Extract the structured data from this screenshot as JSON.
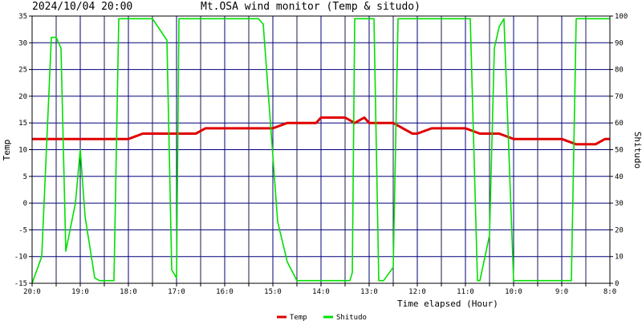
{
  "header": {
    "timestamp": "2024/10/04 20:00",
    "title": "Mt.OSA wind monitor (Temp & situdo)"
  },
  "chart_data": {
    "type": "line",
    "xlabel": "Time elapsed (Hour)",
    "ylabel_left": "Temp",
    "ylabel_right": "Shitudo",
    "ylim_left": [
      -15,
      35
    ],
    "ylim_right": [
      0,
      100
    ],
    "y_ticks_left": [
      35,
      30,
      25,
      20,
      15,
      10,
      5,
      0,
      -5,
      -10,
      -15
    ],
    "y_ticks_right": [
      100,
      90,
      80,
      70,
      60,
      50,
      40,
      30,
      20,
      10,
      0
    ],
    "x_tick_labels": [
      "20:0",
      "19:0",
      "18:0",
      "17:0",
      "16:0",
      "15:0",
      "14:0",
      "13:0",
      "12:0",
      "11:0",
      "10:0",
      "9:0",
      "8:0"
    ],
    "xlim": [
      0,
      12
    ],
    "grid": true,
    "legend_position": "bottom",
    "series": [
      {
        "name": "Temp",
        "color": "#e00000",
        "axis": "left",
        "x": [
          0,
          0.5,
          1.0,
          1.3,
          1.5,
          1.7,
          2.0,
          2.3,
          2.5,
          2.7,
          3.0,
          3.4,
          3.6,
          3.8,
          4.0,
          4.3,
          4.5,
          4.7,
          5.0,
          5.3,
          5.5,
          5.7,
          5.9,
          6.0,
          6.3,
          6.5,
          6.7,
          6.9,
          7.0,
          7.3,
          7.5,
          7.7,
          7.9,
          8.0,
          8.3,
          8.5,
          8.7,
          9.0,
          9.3,
          9.5,
          9.7,
          10.0,
          10.3,
          10.5,
          10.7,
          10.9,
          11.0,
          11.3,
          11.5,
          11.7,
          11.9,
          12.0
        ],
        "values": [
          12,
          12,
          12,
          12,
          12,
          12,
          12,
          13,
          13,
          13,
          13,
          13,
          14,
          14,
          14,
          14,
          14,
          14,
          14,
          15,
          15,
          15,
          15,
          16,
          16,
          16,
          15,
          16,
          15,
          15,
          15,
          14,
          13,
          13,
          14,
          14,
          14,
          14,
          13,
          13,
          13,
          12,
          12,
          12,
          12,
          12,
          12,
          11,
          11,
          11,
          12,
          12
        ]
      },
      {
        "name": "Shitudo",
        "color": "#00e000",
        "axis": "right",
        "x": [
          0,
          0.2,
          0.4,
          0.5,
          0.6,
          0.7,
          0.9,
          1.0,
          1.1,
          1.3,
          1.4,
          1.6,
          1.7,
          1.8,
          2.0,
          2.1,
          2.25,
          2.3,
          2.5,
          2.8,
          2.9,
          3.0,
          3.05,
          3.1,
          3.25,
          3.3,
          3.4,
          3.5,
          4.0,
          4.5,
          4.6,
          4.7,
          4.8,
          5.1,
          5.3,
          5.5,
          6.0,
          6.5,
          6.6,
          6.65,
          6.7,
          7.0,
          7.1,
          7.2,
          7.3,
          7.5,
          7.6,
          8.0,
          8.5,
          8.6,
          8.7,
          9.0,
          9.1,
          9.25,
          9.3,
          9.5,
          9.6,
          9.7,
          9.8,
          10.0,
          10.5,
          11.0,
          11.15,
          11.2,
          11.3,
          11.5,
          11.7,
          12.0
        ],
        "values": [
          0,
          10,
          92,
          92,
          88,
          12,
          30,
          50,
          25,
          2,
          1,
          1,
          1,
          99,
          99,
          99,
          99,
          99,
          99,
          91,
          5,
          2,
          99,
          99,
          99,
          99,
          99,
          99,
          99,
          99,
          99,
          99,
          97,
          23,
          8,
          1,
          1,
          1,
          1,
          4,
          99,
          99,
          99,
          1,
          1,
          6,
          99,
          99,
          99,
          99,
          99,
          99,
          99,
          1,
          1,
          18,
          88,
          96,
          99,
          1,
          1,
          1,
          1,
          1,
          99,
          99,
          99,
          99
        ]
      }
    ]
  }
}
